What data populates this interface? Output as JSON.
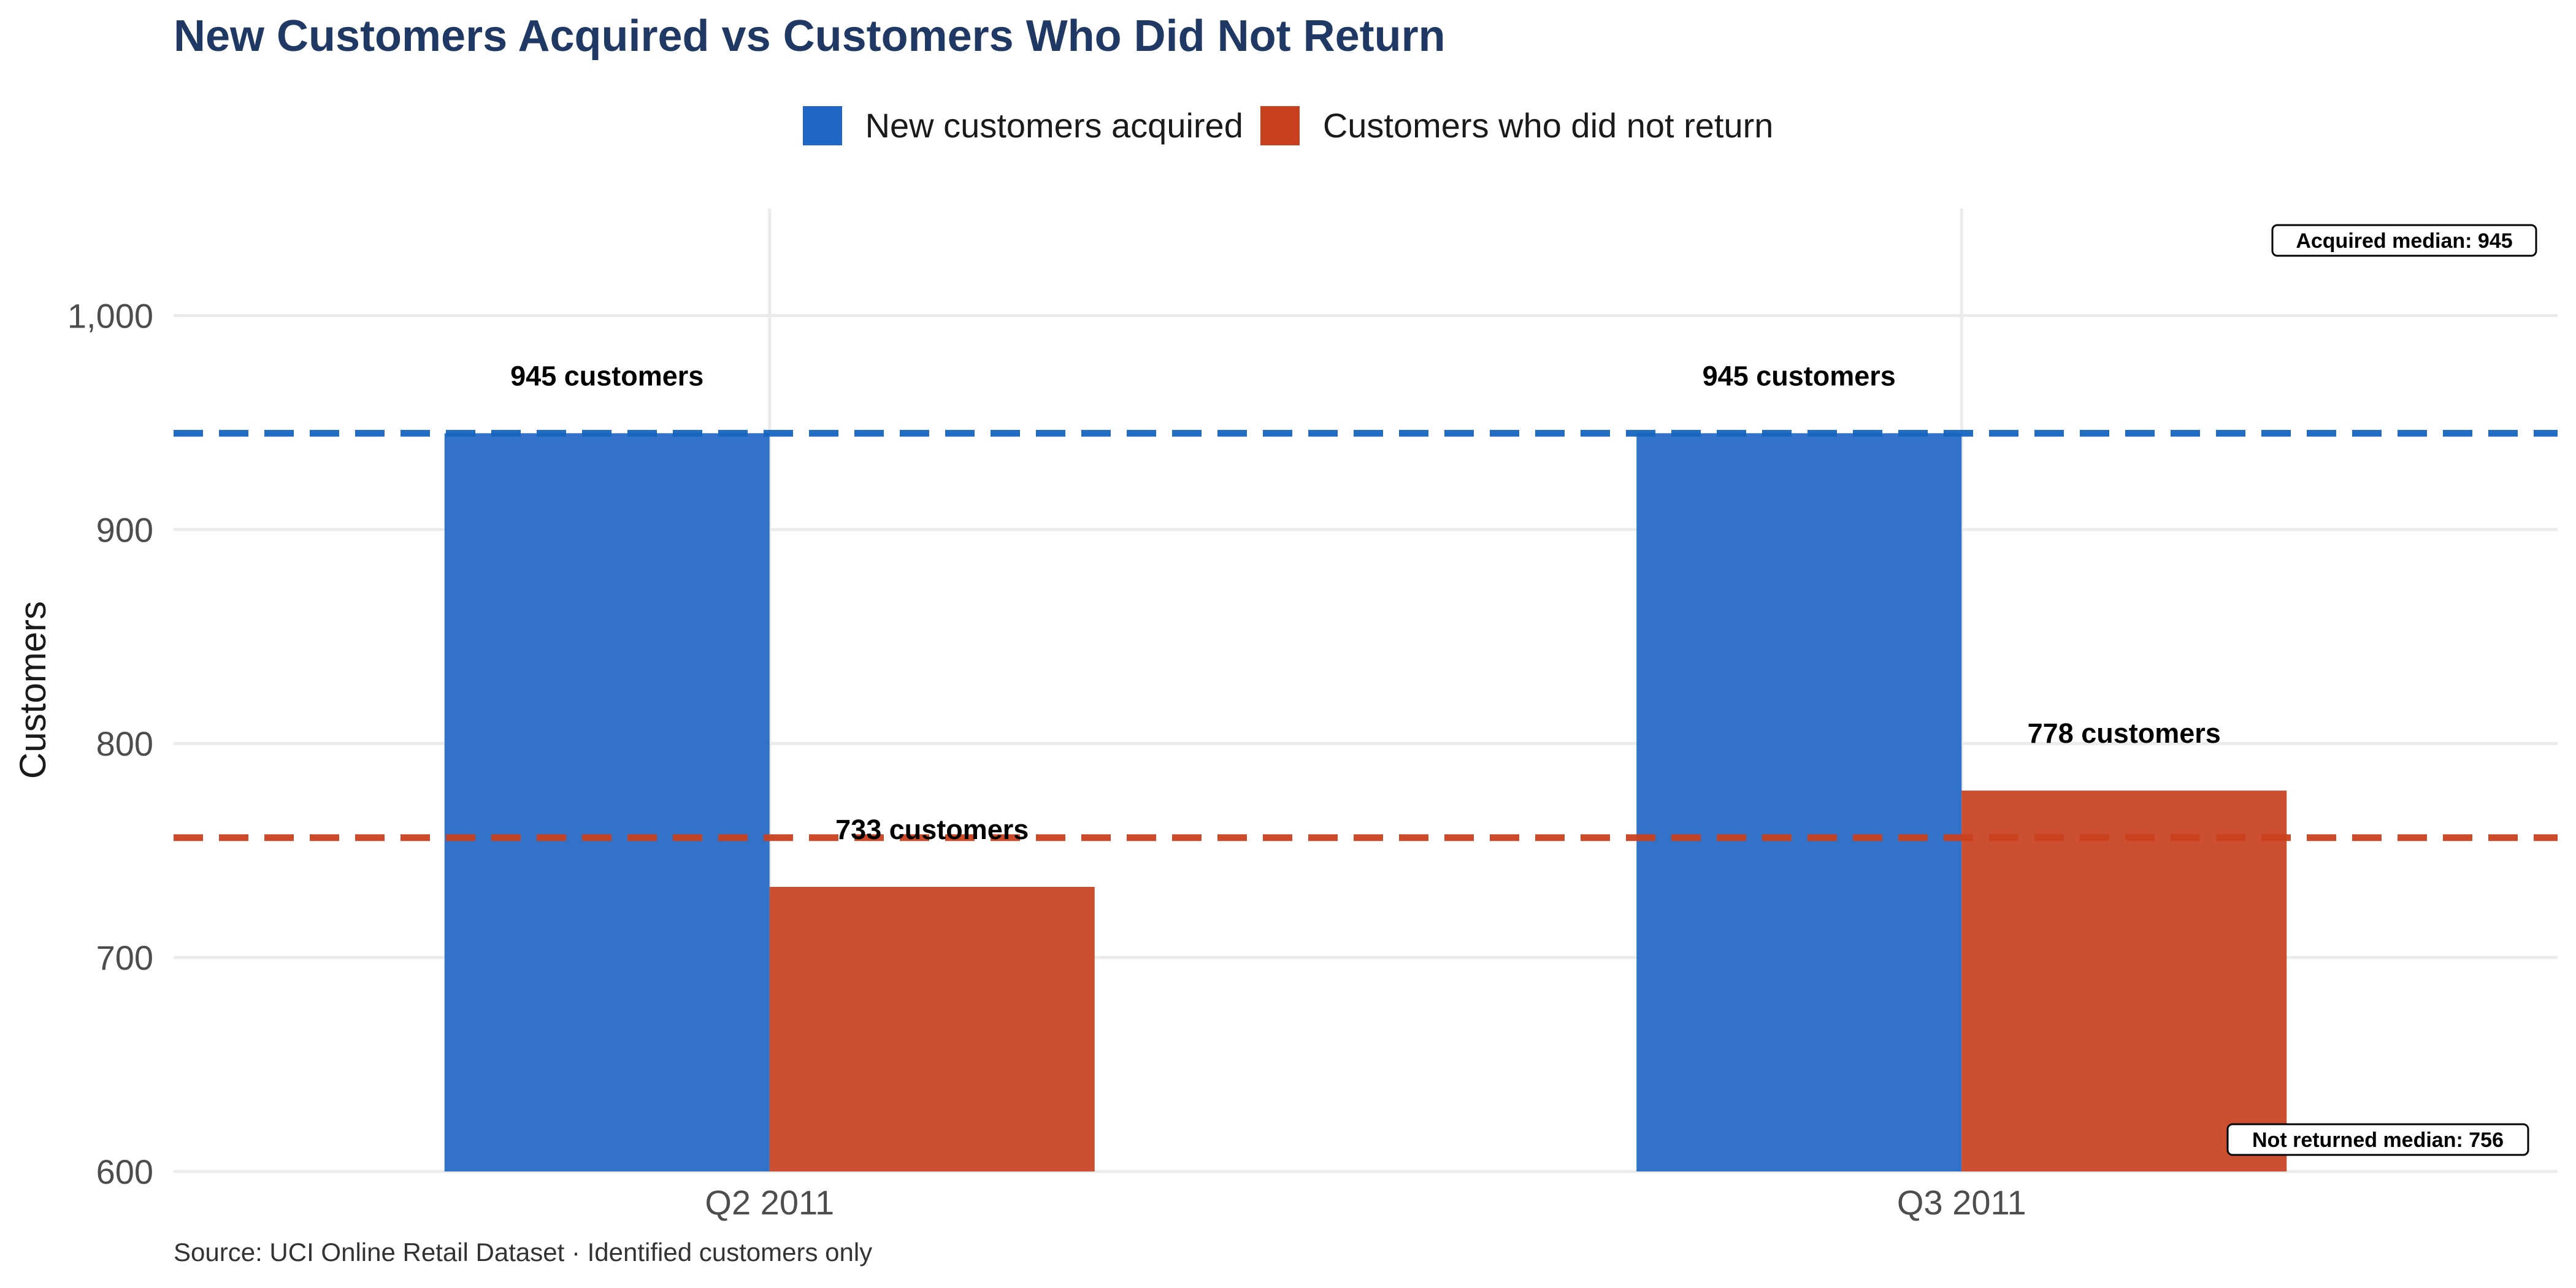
{
  "title": "New Customers Acquired vs Customers Who Did Not Return",
  "source_note": "Source: UCI Online Retail Dataset · Identified customers only",
  "legend": [
    {
      "label": "New customers acquired",
      "color": "#2166c4"
    },
    {
      "label": "Customers who did not return",
      "color": "#c9401f"
    }
  ],
  "colors": {
    "acquired_bar": "#2166c4",
    "not_returned_bar": "#c9401f",
    "acquired_median_line": "#1565c0",
    "not_returned_median_line": "#c9401f",
    "grid": "#ebebeb"
  },
  "chart_data": {
    "type": "bar",
    "title": "New Customers Acquired vs Customers Who Did Not Return",
    "xlabel": "",
    "ylabel": "Customers",
    "categories": [
      "Q2 2011",
      "Q3 2011"
    ],
    "series": [
      {
        "name": "New customers acquired",
        "values": [
          945,
          945
        ],
        "labels": [
          "945 customers",
          "945 customers"
        ]
      },
      {
        "name": "Customers who did not return",
        "values": [
          733,
          778
        ],
        "labels": [
          "733 customers",
          "778 customers"
        ]
      }
    ],
    "ylim": [
      600,
      1050
    ],
    "yticks": [
      600,
      700,
      800,
      900,
      1000
    ],
    "ytick_labels": [
      "600",
      "700",
      "800",
      "900",
      "1,000"
    ],
    "grid": true,
    "legend_position": "top",
    "reference_lines": [
      {
        "value": 945,
        "label": "Acquired median: 945",
        "style": "dashed"
      },
      {
        "value": 756,
        "label": "Not returned median: 756",
        "style": "dashed"
      }
    ]
  }
}
